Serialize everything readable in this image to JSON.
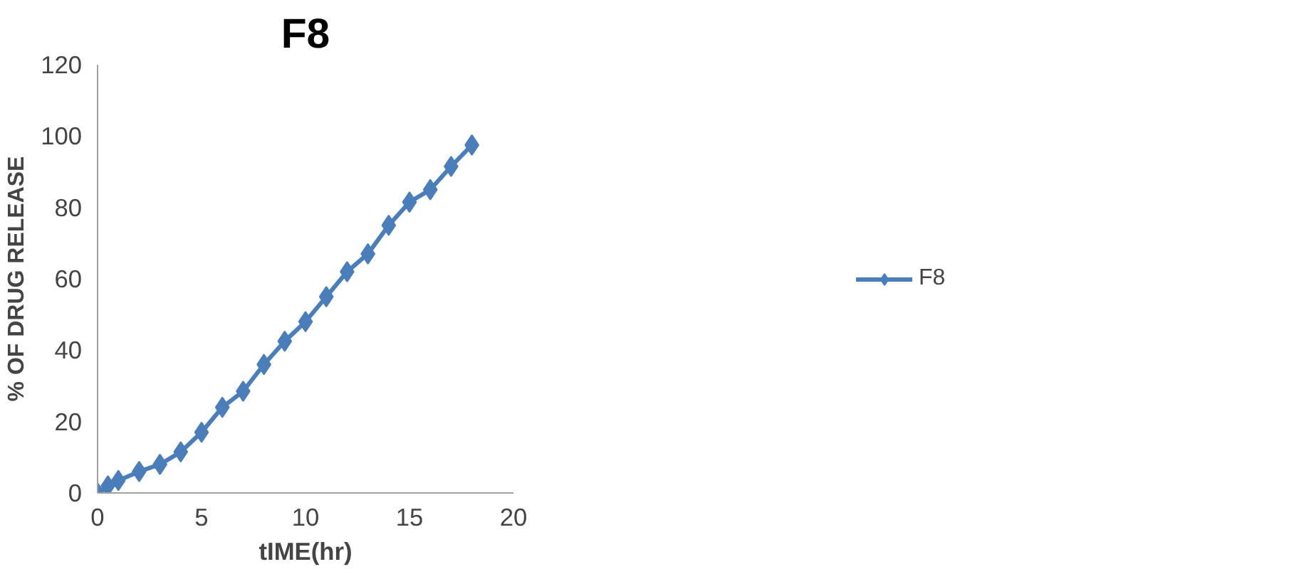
{
  "chart_data": {
    "type": "line",
    "title": "F8",
    "xlabel": "tIME(hr)",
    "ylabel": "% OF DRUG RELEASE",
    "xlim": [
      0,
      20
    ],
    "xticks": [
      0,
      5,
      10,
      15,
      20
    ],
    "ylim": [
      0,
      120
    ],
    "yticks": [
      0,
      20,
      40,
      60,
      80,
      100,
      120
    ],
    "grid": false,
    "legend": "right",
    "marker": "diamond",
    "line_style": "solid",
    "series": [
      {
        "name": "F8",
        "color": "#4a7ebb",
        "x": [
          0,
          0.5,
          1,
          2,
          3,
          4,
          5,
          6,
          7,
          8,
          9,
          10,
          11,
          12,
          13,
          14,
          15,
          16,
          17,
          18
        ],
        "values": [
          0,
          2,
          3.5,
          6,
          8,
          11.5,
          17,
          24,
          28.5,
          36,
          42.5,
          48,
          55,
          62,
          67,
          75,
          81.5,
          85,
          91.5,
          97.5
        ]
      }
    ]
  }
}
